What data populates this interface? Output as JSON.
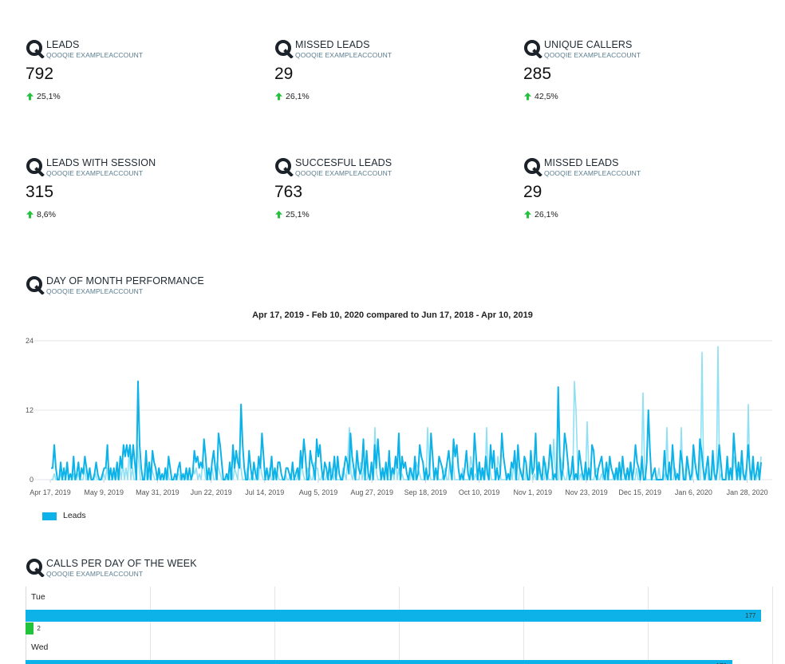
{
  "brand": {
    "logo_letter": "Q",
    "account": "QOOQIE EXAMPLEACCOUNT",
    "positive_color": "#22c33a",
    "primary_color": "#0db3e8",
    "secondary_color": "#8fe0f5"
  },
  "cards": [
    {
      "title": "LEADS",
      "subtitle": "QOOQIE EXAMPLEACCOUNT",
      "value": "792",
      "delta": "25,1%",
      "direction": "up"
    },
    {
      "title": "MISSED LEADS",
      "subtitle": "QOOQIE EXAMPLEACCOUNT",
      "value": "29",
      "delta": "26,1%",
      "direction": "up"
    },
    {
      "title": "UNIQUE CALLERS",
      "subtitle": "QOOQIE EXAMPLEACCOUNT",
      "value": "285",
      "delta": "42,5%",
      "direction": "up"
    },
    {
      "title": "LEADS WITH SESSION",
      "subtitle": "QOOQIE EXAMPLEACCOUNT",
      "value": "315",
      "delta": "8,6%",
      "direction": "up"
    },
    {
      "title": "SUCCESFUL LEADS",
      "subtitle": "QOOQIE EXAMPLEACCOUNT",
      "value": "763",
      "delta": "25,1%",
      "direction": "up"
    },
    {
      "title": "MISSED LEADS",
      "subtitle": "QOOQIE EXAMPLEACCOUNT",
      "value": "29",
      "delta": "26,1%",
      "direction": "up"
    }
  ],
  "sections": {
    "day_of_month": {
      "title": "DAY OF MONTH PERFORMANCE",
      "subtitle": "QOOQIE EXAMPLEACCOUNT"
    },
    "calls_per_day": {
      "title": "CALLS PER DAY OF THE WEEK",
      "subtitle": "QOOQIE EXAMPLEACCOUNT"
    }
  },
  "chart_data": [
    {
      "type": "line",
      "title": "Apr 17, 2019 - Feb 10, 2020 compared to Jun 17, 2018 - Apr 10, 2019",
      "xlabel": "",
      "ylabel": "",
      "ylim": [
        0,
        24
      ],
      "yticks": [
        0,
        12,
        24
      ],
      "xticks": [
        "Apr 17, 2019",
        "May 9, 2019",
        "May 31, 2019",
        "Jun 22, 2019",
        "Jul 14, 2019",
        "Aug 5, 2019",
        "Aug 27, 2019",
        "Sep 18, 2019",
        "Oct 10, 2019",
        "Nov 1, 2019",
        "Nov 23, 2019",
        "Dec 15, 2019",
        "Jan 6, 2020",
        "Jan 28, 2020"
      ],
      "x_range": [
        "Apr 17, 2019",
        "Feb 10, 2020"
      ],
      "grid": true,
      "legend": "bottom-left",
      "series": [
        {
          "name": "Leads",
          "color": "#0db3e8",
          "values": [
            2,
            2,
            6,
            2,
            0,
            0,
            3,
            0,
            2,
            0,
            3,
            0,
            1,
            0,
            4,
            0,
            1,
            3,
            0,
            2,
            1,
            4,
            2,
            0,
            2,
            0,
            0,
            1,
            3,
            1,
            0,
            0,
            1,
            2,
            2,
            6,
            0,
            2,
            0,
            2,
            0,
            3,
            0,
            4,
            2,
            6,
            4,
            6,
            4,
            6,
            2,
            6,
            3,
            0,
            17,
            6,
            2,
            0,
            0,
            5,
            0,
            3,
            0,
            5,
            3,
            2,
            0,
            2,
            0,
            1,
            0,
            2,
            0,
            4,
            2,
            0,
            0,
            1,
            0,
            2,
            3,
            0,
            1,
            0,
            2,
            0,
            2,
            0,
            1,
            5,
            3,
            4,
            2,
            3,
            2,
            7,
            4,
            0,
            2,
            0,
            3,
            5,
            2,
            0,
            8,
            6,
            3,
            0,
            0,
            1,
            0,
            3,
            0,
            6,
            2,
            5,
            3,
            2,
            13,
            6,
            2,
            0,
            0,
            5,
            2,
            0,
            3,
            1,
            0,
            4,
            2,
            8,
            4,
            0,
            2,
            0,
            1,
            4,
            0,
            2,
            0,
            3,
            3,
            1,
            0,
            0,
            2,
            2,
            1,
            0,
            3,
            0,
            1,
            2,
            0,
            5,
            2,
            7,
            4,
            0,
            0,
            5,
            3,
            2,
            0,
            7,
            4,
            6,
            2,
            0,
            3,
            2,
            0,
            3,
            0,
            1,
            4,
            0,
            4,
            1,
            0,
            0,
            2,
            4,
            3,
            1,
            8,
            4,
            2,
            0,
            5,
            2,
            1,
            2,
            7,
            0,
            5,
            1,
            0,
            3,
            0,
            6,
            2,
            7,
            3,
            0,
            2,
            0,
            3,
            0,
            5,
            0,
            2,
            1,
            4,
            2,
            8,
            0,
            4,
            2,
            3,
            1,
            0,
            2,
            1,
            0,
            4,
            0,
            1,
            6,
            4,
            3,
            0,
            2,
            0,
            1,
            8,
            4,
            0,
            2,
            0,
            4,
            3,
            2,
            0,
            1,
            3,
            5,
            2,
            0,
            7,
            4,
            6,
            2,
            0,
            1,
            0,
            2,
            5,
            1,
            0,
            2,
            0,
            8,
            4,
            0,
            3,
            0,
            2,
            0,
            4,
            1,
            0,
            6,
            2,
            5,
            0,
            2,
            0,
            1,
            8,
            4,
            2,
            0,
            1,
            0,
            3,
            2,
            5,
            0,
            6,
            2,
            1,
            0,
            4,
            3,
            0,
            0,
            5,
            1,
            2,
            8,
            0,
            3,
            1,
            0,
            4,
            2,
            0,
            2,
            6,
            3,
            0,
            1,
            0,
            16,
            4,
            0,
            2,
            8,
            6,
            3,
            0,
            1,
            4,
            0,
            1,
            0,
            5,
            3,
            1,
            0,
            3,
            0,
            2,
            0,
            6,
            5,
            1,
            0,
            2,
            3,
            4,
            1,
            0,
            3,
            0,
            4,
            2,
            1,
            0,
            2,
            0,
            3,
            0,
            4,
            1,
            0,
            2,
            0,
            3,
            0,
            2,
            6,
            3,
            2,
            0,
            4,
            0,
            0,
            3,
            12,
            5,
            0,
            1,
            2,
            0,
            0,
            0,
            0,
            0,
            5,
            1,
            0,
            3,
            0,
            6,
            2,
            0,
            1,
            0,
            5,
            3,
            0,
            0,
            4,
            2,
            0,
            1,
            6,
            3,
            1,
            0,
            7,
            5,
            2,
            0,
            2,
            4,
            0,
            0,
            5,
            1,
            0,
            2,
            6,
            3,
            0,
            0,
            0,
            4,
            0,
            2,
            0,
            8,
            4,
            0,
            3,
            0,
            5,
            1,
            0,
            2,
            6,
            2,
            0,
            4,
            0,
            1,
            3,
            0,
            3
          ]
        },
        {
          "name": "",
          "color": "#8fe0f5",
          "values": [
            0,
            0,
            1,
            0,
            0,
            0,
            1,
            0,
            0,
            0,
            2,
            0,
            0,
            0,
            1,
            0,
            0,
            1,
            0,
            0,
            0,
            2,
            0,
            0,
            1,
            0,
            0,
            0,
            1,
            0,
            0,
            0,
            0,
            1,
            0,
            2,
            0,
            0,
            0,
            1,
            0,
            1,
            0,
            2,
            0,
            3,
            0,
            2,
            0,
            5,
            0,
            2,
            0,
            0,
            6,
            3,
            0,
            0,
            0,
            2,
            0,
            1,
            0,
            2,
            1,
            0,
            0,
            1,
            0,
            0,
            0,
            1,
            0,
            2,
            0,
            0,
            0,
            0,
            0,
            1,
            1,
            0,
            0,
            0,
            1,
            0,
            0,
            0,
            0,
            2,
            1,
            2,
            0,
            1,
            0,
            3,
            2,
            0,
            0,
            0,
            1,
            2,
            0,
            0,
            3,
            2,
            1,
            0,
            0,
            0,
            0,
            1,
            0,
            2,
            0,
            2,
            1,
            0,
            5,
            2,
            0,
            0,
            0,
            2,
            0,
            0,
            1,
            0,
            0,
            2,
            0,
            3,
            1,
            0,
            0,
            0,
            0,
            2,
            0,
            0,
            0,
            1,
            1,
            0,
            0,
            0,
            0,
            1,
            0,
            0,
            1,
            0,
            0,
            0,
            0,
            2,
            0,
            3,
            1,
            0,
            0,
            2,
            1,
            0,
            0,
            3,
            2,
            2,
            0,
            0,
            1,
            0,
            0,
            1,
            0,
            0,
            2,
            0,
            1,
            0,
            0,
            0,
            0,
            2,
            1,
            0,
            4,
            9,
            1,
            0,
            2,
            0,
            0,
            0,
            3,
            0,
            2,
            0,
            0,
            1,
            0,
            3,
            0,
            9,
            1,
            0,
            0,
            0,
            1,
            0,
            2,
            0,
            0,
            0,
            2,
            0,
            4,
            0,
            2,
            0,
            1,
            0,
            0,
            0,
            0,
            0,
            2,
            0,
            0,
            3,
            2,
            1,
            0,
            0,
            0,
            0,
            9,
            2,
            0,
            0,
            0,
            2,
            1,
            0,
            0,
            0,
            1,
            2,
            0,
            0,
            3,
            2,
            3,
            0,
            0,
            0,
            0,
            0,
            2,
            0,
            0,
            0,
            0,
            4,
            2,
            0,
            1,
            0,
            0,
            0,
            2,
            0,
            0,
            9,
            0,
            2,
            0,
            0,
            0,
            0,
            4,
            2,
            0,
            0,
            0,
            0,
            1,
            0,
            2,
            0,
            3,
            0,
            0,
            0,
            2,
            1,
            0,
            0,
            2,
            0,
            0,
            4,
            0,
            1,
            0,
            0,
            2,
            0,
            0,
            0,
            3,
            1,
            0,
            0,
            0,
            7,
            2,
            0,
            0,
            4,
            3,
            1,
            0,
            0,
            2,
            0,
            0,
            0,
            17,
            12,
            3,
            0,
            1,
            0,
            0,
            0,
            10,
            2,
            0,
            0,
            0,
            1,
            2,
            0,
            0,
            1,
            0,
            2,
            0,
            0,
            0,
            0,
            0,
            1,
            0,
            2,
            0,
            0,
            0,
            0,
            1,
            0,
            0,
            3,
            1,
            0,
            0,
            2,
            0,
            0,
            1,
            15,
            2,
            0,
            0,
            0,
            0,
            0,
            0,
            0,
            0,
            2,
            0,
            0,
            1,
            0,
            9,
            0,
            0,
            0,
            0,
            2,
            1,
            0,
            0,
            9,
            0,
            0,
            0,
            3,
            1,
            0,
            0,
            4,
            2,
            0,
            0,
            0,
            22,
            0,
            0,
            2,
            0,
            0,
            0,
            3,
            0,
            0,
            23,
            0,
            1,
            0,
            0,
            0,
            2,
            0,
            0,
            0,
            4,
            2,
            0,
            1,
            0,
            2,
            0,
            0,
            0,
            13,
            0,
            0,
            2,
            0,
            0,
            1,
            0,
            4
          ]
        }
      ]
    },
    {
      "type": "bar",
      "orientation": "horizontal",
      "title": "",
      "categories": [
        "Tue",
        "Wed"
      ],
      "xlim": [
        0,
        177
      ],
      "grid": true,
      "series": [
        {
          "name": "",
          "color": "#0db3e8",
          "values": [
            177,
            170
          ]
        },
        {
          "name": "",
          "color": "#22c33a",
          "values": [
            2,
            null
          ]
        }
      ]
    }
  ]
}
